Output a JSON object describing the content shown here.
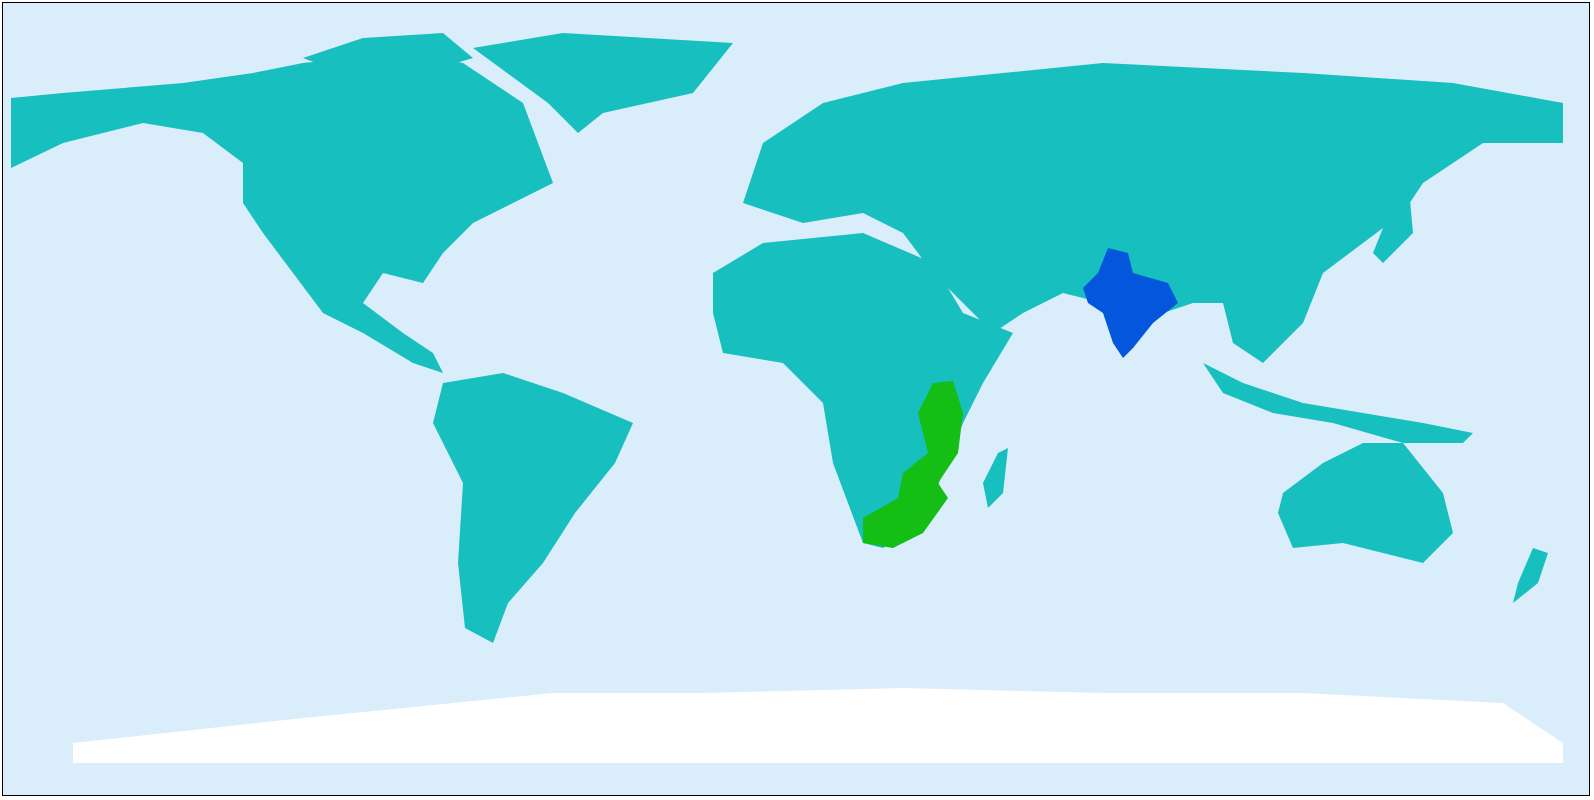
{
  "map": {
    "projection": "equirectangular",
    "colors": {
      "ocean": "#d9edfb",
      "land": "#17bfbf",
      "antarctica": "#ffffff",
      "highlight_blue": "#0457dc",
      "highlight_green": "#14be14",
      "border": "#000000"
    }
  }
}
